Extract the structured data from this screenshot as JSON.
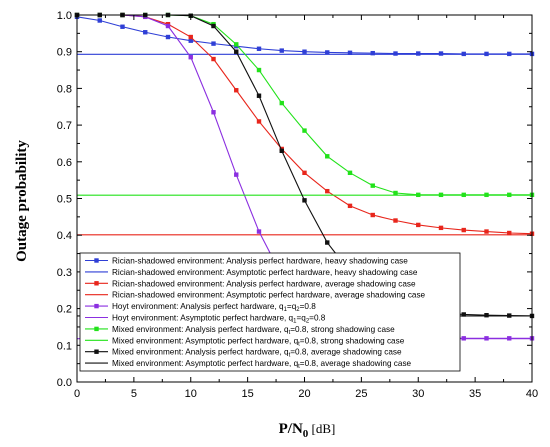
{
  "chart_data": {
    "type": "line",
    "xlabel_main": "P/N",
    "xlabel_sub": "0",
    "xlabel_unit": "[dB]",
    "ylabel": "Outage probability",
    "xlim": [
      0,
      40
    ],
    "ylim": [
      0,
      1.0
    ],
    "x_ticks": [
      "0",
      "5",
      "10",
      "15",
      "20",
      "25",
      "30",
      "35",
      "40"
    ],
    "y_ticks": [
      "0.0",
      "0.1",
      "0.2",
      "0.3",
      "0.4",
      "0.5",
      "0.6",
      "0.7",
      "0.8",
      "0.9",
      "1.0"
    ],
    "grid": false,
    "legend_position": "bottom-left",
    "series": [
      {
        "name": "Rician-shadowed environment: Analysis perfect hardware, heavy shadowing case",
        "color": "#2f3fd6",
        "style": "solid",
        "marker": "square",
        "x": [
          0,
          2,
          4,
          6,
          8,
          10,
          12,
          14,
          16,
          18,
          20,
          22,
          24,
          26,
          28,
          30,
          32,
          34,
          36,
          38,
          40
        ],
        "y": [
          0.995,
          0.985,
          0.968,
          0.953,
          0.94,
          0.93,
          0.922,
          0.915,
          0.908,
          0.903,
          0.9,
          0.898,
          0.897,
          0.896,
          0.895,
          0.895,
          0.895,
          0.894,
          0.894,
          0.894,
          0.894
        ]
      },
      {
        "name": "Rician-shadowed environment: Asymptotic perfect hardware, heavy shadowing case",
        "color": "#2f3fd6",
        "style": "solid",
        "marker": "none",
        "x": [
          0,
          40
        ],
        "y": [
          0.893,
          0.893
        ]
      },
      {
        "name": "Rician-shadowed environment: Analysis perfect hardware, average shadowing case",
        "color": "#e8261c",
        "style": "solid",
        "marker": "square",
        "x": [
          0,
          2,
          4,
          6,
          8,
          10,
          12,
          14,
          16,
          18,
          20,
          22,
          24,
          26,
          28,
          30,
          32,
          34,
          36,
          38,
          40
        ],
        "y": [
          1.0,
          1.0,
          1.0,
          0.995,
          0.975,
          0.94,
          0.88,
          0.795,
          0.71,
          0.635,
          0.57,
          0.52,
          0.48,
          0.455,
          0.44,
          0.428,
          0.42,
          0.414,
          0.41,
          0.406,
          0.404
        ]
      },
      {
        "name": "Rician-shadowed environment: Asymptotic perfect hardware, average shadowing case",
        "color": "#e8261c",
        "style": "solid",
        "marker": "none",
        "x": [
          0,
          40
        ],
        "y": [
          0.401,
          0.401
        ]
      },
      {
        "name": "Hoyt environment: Analysis perfect hardware, q1=q2=0.8",
        "label_parts": [
          "Hoyt environment: Analysis perfect hardware, q",
          "1",
          "=q",
          "2",
          "=0.8"
        ],
        "color": "#8b2fe0",
        "style": "solid",
        "marker": "square",
        "x": [
          0,
          2,
          4,
          6,
          8,
          10,
          12,
          14,
          16,
          18,
          20,
          22,
          24,
          26,
          28,
          30,
          32,
          34,
          36,
          38,
          40
        ],
        "y": [
          1.0,
          1.0,
          1.0,
          0.995,
          0.97,
          0.885,
          0.735,
          0.565,
          0.41,
          0.29,
          0.21,
          0.165,
          0.14,
          0.13,
          0.124,
          0.121,
          0.12,
          0.119,
          0.119,
          0.119,
          0.119
        ]
      },
      {
        "name": "Hoyt environment: Asymptotic perfect hardware, q1=q2=0.8",
        "label_parts": [
          "Hoyt environment: Asymptotic perfect hardware, q",
          "1",
          "=q",
          "2",
          "=0.8"
        ],
        "color": "#8b2fe0",
        "style": "solid",
        "marker": "none",
        "x": [
          0,
          40
        ],
        "y": [
          0.118,
          0.118
        ]
      },
      {
        "name": "Mixed environment: Analysis perfect hardware, qt=0.8, strong shadowing case",
        "label_parts": [
          "Mixed environment: Analysis perfect hardware, q",
          "t",
          "=0.8, strong shadowing case"
        ],
        "color": "#22e21a",
        "style": "solid",
        "marker": "square",
        "x": [
          0,
          2,
          4,
          6,
          8,
          10,
          12,
          14,
          16,
          18,
          20,
          22,
          24,
          26,
          28,
          30,
          32,
          34,
          36,
          38,
          40
        ],
        "y": [
          1.0,
          1.0,
          1.0,
          1.0,
          1.0,
          0.998,
          0.975,
          0.92,
          0.85,
          0.76,
          0.685,
          0.615,
          0.57,
          0.535,
          0.515,
          0.51,
          0.51,
          0.51,
          0.51,
          0.51,
          0.51
        ]
      },
      {
        "name": "Mixed environment: Asymptotic perfect hardware, qt=0.8, strong shadowing case",
        "label_parts": [
          "Mixed environment: Asymptotic perfect hardware, q",
          "t",
          "=0.8, strong shadowing case"
        ],
        "color": "#22e21a",
        "style": "solid",
        "marker": "none",
        "x": [
          0,
          40
        ],
        "y": [
          0.509,
          0.509
        ]
      },
      {
        "name": "Mixed environment: Analysis perfect hardware, qt=0.8, average shadowing case",
        "label_parts": [
          "Mixed environment: Analysis perfect hardware, q",
          "t",
          "=0.8, average shadowing case"
        ],
        "color": "#111111",
        "style": "solid",
        "marker": "square",
        "x": [
          0,
          2,
          4,
          6,
          8,
          10,
          12,
          14,
          16,
          18,
          20,
          22,
          24,
          26,
          28,
          30,
          32,
          34,
          36,
          38,
          40
        ],
        "y": [
          1.0,
          1.0,
          1.0,
          1.0,
          1.0,
          0.998,
          0.97,
          0.9,
          0.78,
          0.63,
          0.495,
          0.38,
          0.3,
          0.245,
          0.21,
          0.195,
          0.188,
          0.184,
          0.182,
          0.181,
          0.18
        ]
      },
      {
        "name": "Mixed environment: Asymptotic perfect hardware, qt=0.8, average shadowing case",
        "label_parts": [
          "Mixed environment: Asymptotic perfect hardware, q",
          "t",
          "=0.8, average shadowing case"
        ],
        "color": "#111111",
        "style": "solid",
        "marker": "none",
        "x": [
          0,
          40
        ],
        "y": [
          0.18,
          0.18
        ]
      }
    ]
  }
}
